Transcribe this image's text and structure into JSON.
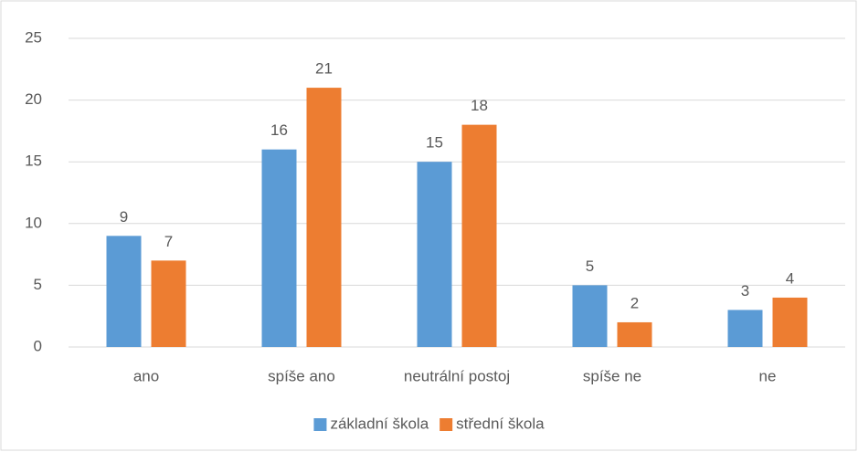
{
  "chart_data": {
    "type": "bar",
    "categories": [
      "ano",
      "spíše ano",
      "neutrální postoj",
      "spíše ne",
      "ne"
    ],
    "series": [
      {
        "name": "základní škola",
        "color": "#5b9bd5",
        "values": [
          9,
          16,
          15,
          5,
          3
        ]
      },
      {
        "name": "střední škola",
        "color": "#ed7d31",
        "values": [
          7,
          21,
          18,
          2,
          4
        ]
      }
    ],
    "ylim": [
      0,
      25
    ],
    "yticks": [
      0,
      5,
      10,
      15,
      20,
      25
    ],
    "grid": true,
    "legend": "bottom"
  }
}
